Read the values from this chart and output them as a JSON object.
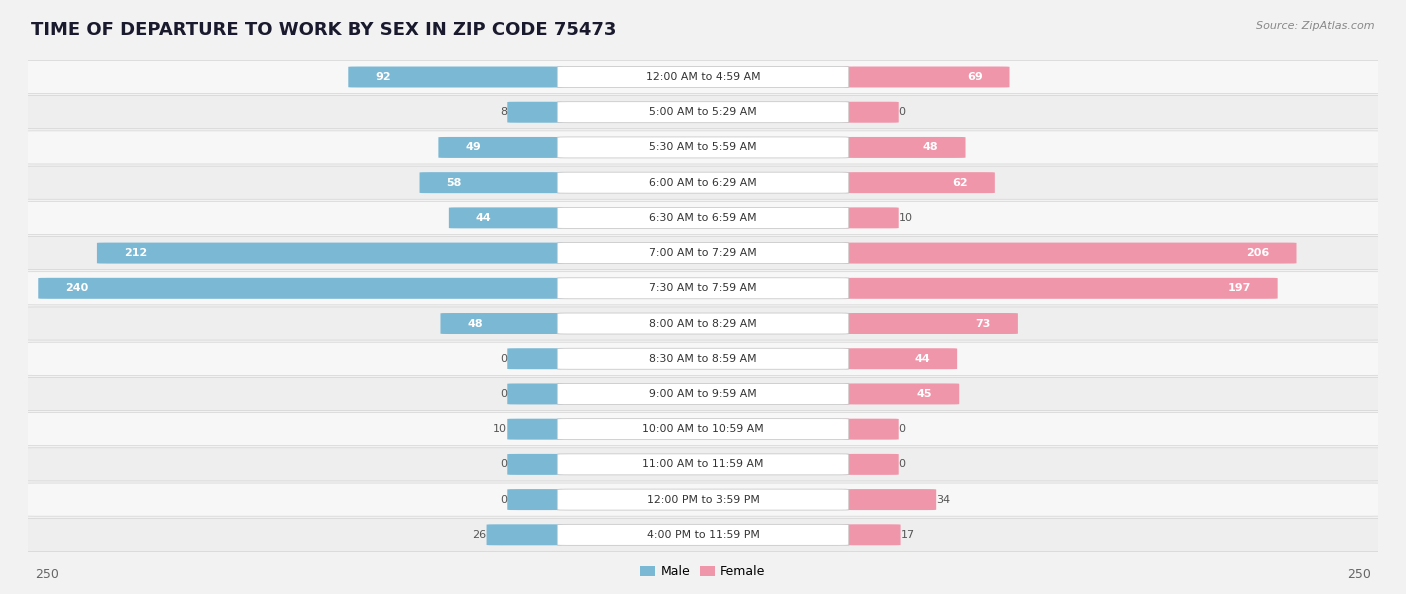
{
  "title": "TIME OF DEPARTURE TO WORK BY SEX IN ZIP CODE 75473",
  "source": "Source: ZipAtlas.com",
  "categories": [
    "12:00 AM to 4:59 AM",
    "5:00 AM to 5:29 AM",
    "5:30 AM to 5:59 AM",
    "6:00 AM to 6:29 AM",
    "6:30 AM to 6:59 AM",
    "7:00 AM to 7:29 AM",
    "7:30 AM to 7:59 AM",
    "8:00 AM to 8:29 AM",
    "8:30 AM to 8:59 AM",
    "9:00 AM to 9:59 AM",
    "10:00 AM to 10:59 AM",
    "11:00 AM to 11:59 AM",
    "12:00 PM to 3:59 PM",
    "4:00 PM to 11:59 PM"
  ],
  "male": [
    92,
    8,
    49,
    58,
    44,
    212,
    240,
    48,
    0,
    0,
    10,
    0,
    0,
    26
  ],
  "female": [
    69,
    0,
    48,
    62,
    10,
    206,
    197,
    73,
    44,
    45,
    0,
    0,
    34,
    17
  ],
  "male_color": "#7bb8d4",
  "male_color_dark": "#5a9fc0",
  "female_color": "#f096aa",
  "female_color_dark": "#e05575",
  "max_val": 250,
  "bg_color": "#f2f2f2",
  "row_light": "#f7f7f7",
  "row_dark": "#eeeeee",
  "title_fontsize": 13,
  "source_fontsize": 8,
  "label_fontsize": 8,
  "value_fontsize": 8
}
